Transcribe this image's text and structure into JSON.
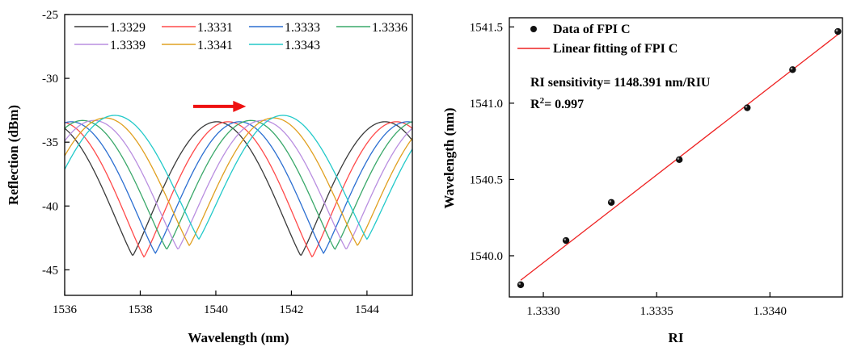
{
  "chart_data": [
    {
      "type": "line",
      "title": "",
      "xlabel": "Wavelength (nm)",
      "ylabel": "Reflection (dBm)",
      "xlim": [
        1536,
        1545.2
      ],
      "ylim": [
        -47,
        -25
      ],
      "x_ticks": [
        "1536",
        "1538",
        "1540",
        "1542",
        "1544"
      ],
      "y_ticks": [
        "-25",
        "-30",
        "-35",
        "-40",
        "-45"
      ],
      "legend_position": "top",
      "series": [
        {
          "name": "1.3329",
          "color": "#3a3a3a",
          "min_wavelength": 1537.8,
          "period": 4.45,
          "min_dbm": -43.9,
          "max_dbm": -33.4
        },
        {
          "name": "1.3331",
          "color": "#ff4a4a",
          "min_wavelength": 1538.1,
          "period": 4.45,
          "min_dbm": -44.0,
          "max_dbm": -33.4
        },
        {
          "name": "1.3333",
          "color": "#2c6fd1",
          "min_wavelength": 1538.4,
          "period": 4.45,
          "min_dbm": -43.7,
          "max_dbm": -33.4
        },
        {
          "name": "1.3336",
          "color": "#3aa86a",
          "min_wavelength": 1538.7,
          "period": 4.45,
          "min_dbm": -43.4,
          "max_dbm": -33.3
        },
        {
          "name": "1.3339",
          "color": "#b98ee0",
          "min_wavelength": 1539.0,
          "period": 4.45,
          "min_dbm": -43.4,
          "max_dbm": -33.3
        },
        {
          "name": "1.3341",
          "color": "#e0a020",
          "min_wavelength": 1539.3,
          "period": 4.45,
          "min_dbm": -43.1,
          "max_dbm": -33.1
        },
        {
          "name": "1.3343",
          "color": "#22c9c9",
          "min_wavelength": 1539.55,
          "period": 4.45,
          "min_dbm": -42.6,
          "max_dbm": -32.9
        }
      ],
      "annotations": [
        {
          "type": "arrow",
          "from": [
            1539.4,
            -32.2
          ],
          "to": [
            1540.8,
            -32.2
          ],
          "color": "#ee1111"
        }
      ]
    },
    {
      "type": "scatter",
      "title": "",
      "xlabel": "RI",
      "ylabel": "Wavelength (nm)",
      "xlim": [
        1.33285,
        1.33432
      ],
      "ylim": [
        1539.73,
        1541.56
      ],
      "x_ticks": [
        "1.3330",
        "1.3335",
        "1.3340"
      ],
      "y_ticks": [
        "1540.0",
        "1540.5",
        "1541.0",
        "1541.5"
      ],
      "legend_position": "top-left",
      "series": [
        {
          "name": "Data of FPI C",
          "color": "#111111",
          "x": [
            1.3329,
            1.3331,
            1.3333,
            1.3336,
            1.3339,
            1.3341,
            1.3343
          ],
          "y": [
            1539.81,
            1540.1,
            1540.35,
            1540.63,
            1540.97,
            1541.22,
            1541.47
          ]
        },
        {
          "name": "Linear fitting of FPI C",
          "color": "#ee2222",
          "x": [
            1.3329,
            1.3343
          ],
          "y": [
            1539.84,
            1541.45
          ]
        }
      ],
      "annotations": [
        {
          "text": "RI sensitivity= 1148.391 nm/RIU"
        },
        {
          "text_prefix": "R",
          "sup": "2",
          "text_suffix": "= 0.997"
        }
      ]
    }
  ]
}
